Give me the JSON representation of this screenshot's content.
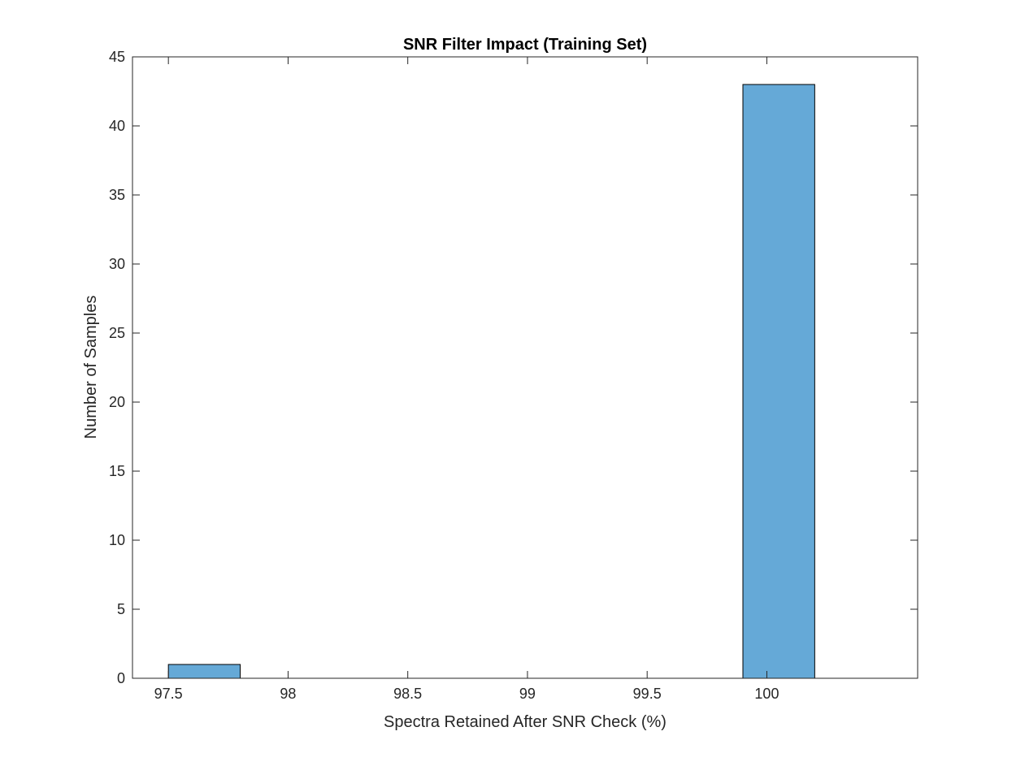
{
  "chart_data": {
    "type": "bar",
    "title": "SNR Filter Impact (Training Set)",
    "xlabel": "Spectra Retained After SNR Check (%)",
    "ylabel": "Number of Samples",
    "xlim": [
      97.35,
      100.63
    ],
    "ylim": [
      0,
      45
    ],
    "xticks": [
      97.5,
      98,
      98.5,
      99,
      99.5,
      100
    ],
    "xtick_labels": [
      "97.5",
      "98",
      "98.5",
      "99",
      "99.5",
      "100"
    ],
    "yticks": [
      0,
      5,
      10,
      15,
      20,
      25,
      30,
      35,
      40,
      45
    ],
    "ytick_labels": [
      "0",
      "5",
      "10",
      "15",
      "20",
      "25",
      "30",
      "35",
      "40",
      "45"
    ],
    "bins": [
      {
        "x0": 97.5,
        "x1": 97.8,
        "count": 1
      },
      {
        "x0": 99.9,
        "x1": 100.2,
        "count": 43
      }
    ],
    "bar_color": "#65a9d7",
    "edge_color": "#000000",
    "grid": false,
    "legend": "none"
  }
}
